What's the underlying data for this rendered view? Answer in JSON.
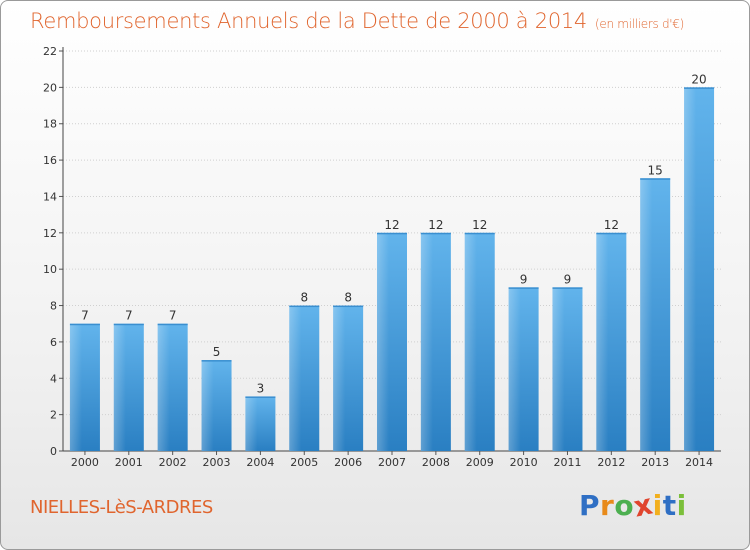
{
  "title": "Remboursements Annuels de la Dette de 2000 à 2014",
  "unit_label": "(en milliers d'€)",
  "commune": "NIELLES-LèS-ARDRES",
  "logo_text": [
    "P",
    "r",
    "o",
    "x",
    "i",
    "t",
    "i"
  ],
  "colors": {
    "title": "#e0652e",
    "bar_light": "#62b4ec",
    "bar_dark": "#2a7fc2",
    "grid": "#d0d0d0"
  },
  "chart_data": {
    "type": "bar",
    "categories": [
      "2000",
      "2001",
      "2002",
      "2003",
      "2004",
      "2005",
      "2006",
      "2007",
      "2008",
      "2009",
      "2010",
      "2011",
      "2012",
      "2013",
      "2014"
    ],
    "values": [
      7,
      7,
      7,
      5,
      3,
      8,
      8,
      12,
      12,
      12,
      9,
      9,
      12,
      15,
      20
    ],
    "yticks": [
      0,
      2,
      4,
      6,
      8,
      10,
      12,
      14,
      16,
      18,
      20,
      22
    ],
    "ylim": [
      0,
      22
    ],
    "grid": true,
    "xlabel": "",
    "ylabel": ""
  }
}
